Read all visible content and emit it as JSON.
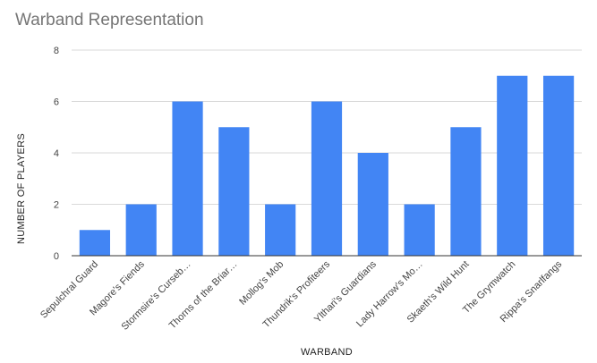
{
  "chart_data": {
    "type": "bar",
    "title": "Warband Representation",
    "xlabel": "WARBAND",
    "ylabel": "NUMBER OF PLAYERS",
    "categories": [
      "Sepulchral Guard",
      "Magore's Fiends",
      "Stormsire's Curseb…",
      "Thorns of the Briar…",
      "Mollog's Mob",
      "Thundrik's Profiteers",
      "Ylthari's Guardians",
      "Lady Harrow's Mo…",
      "Skaeth's Wild Hunt",
      "The Grymwatch",
      "Rippa's Snarlfangs"
    ],
    "values": [
      1,
      2,
      6,
      5,
      2,
      6,
      4,
      2,
      5,
      7,
      7
    ],
    "ylim": [
      0,
      8
    ],
    "yticks": [
      0,
      2,
      4,
      6,
      8
    ],
    "grid": true,
    "bar_color": "#4285f4",
    "grid_color": "#d9d9d9",
    "axis_color": "#333333"
  }
}
